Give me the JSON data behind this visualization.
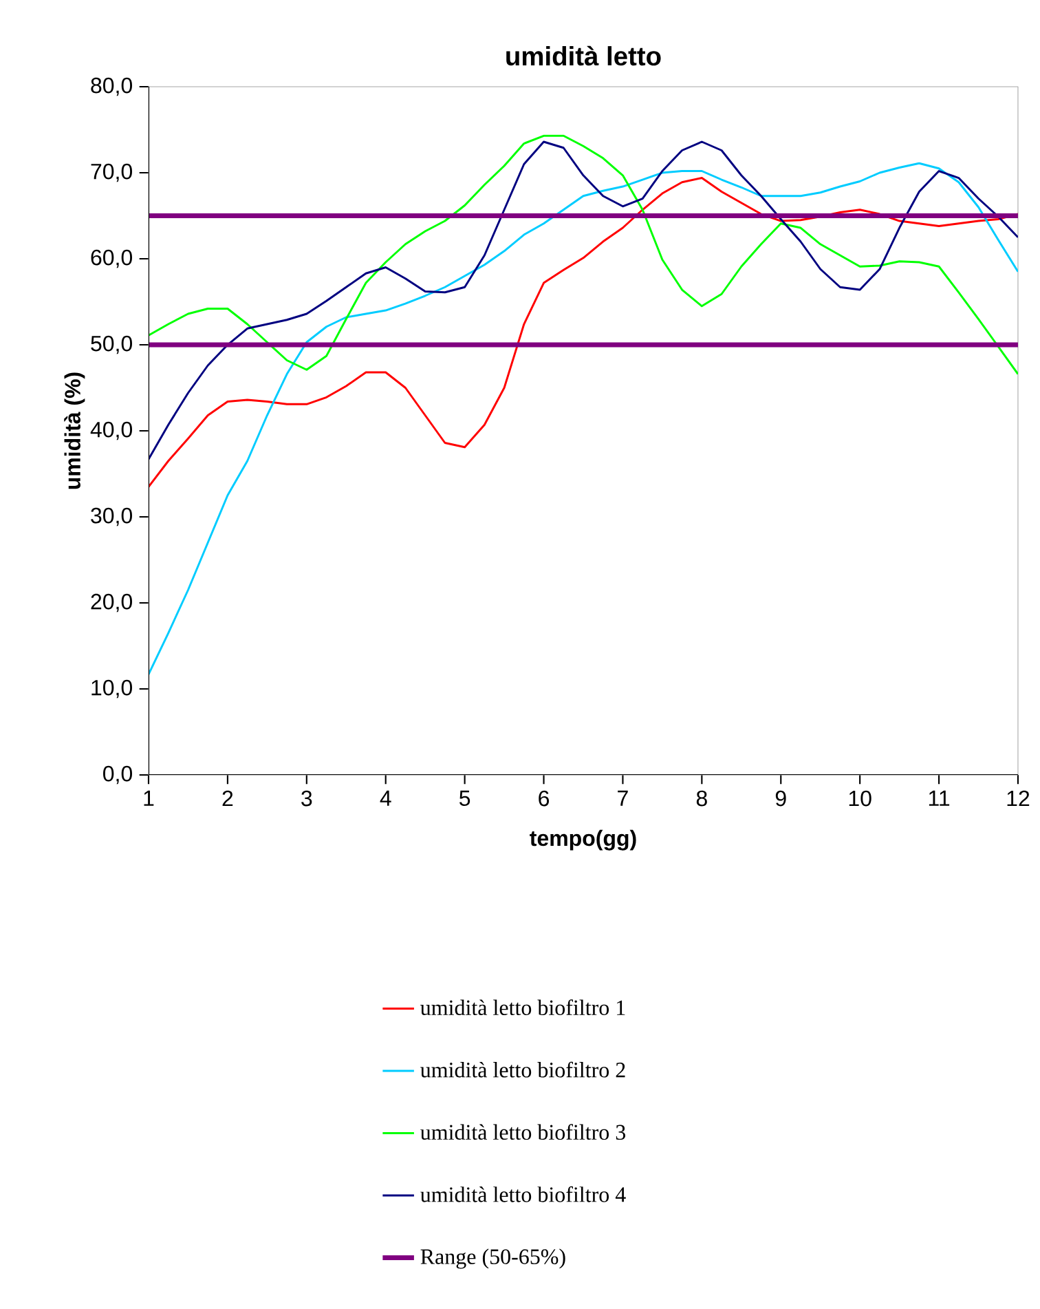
{
  "chart_data": {
    "type": "line",
    "title": "umidità letto",
    "xlabel": "tempo(gg)",
    "ylabel": "umidità (%)",
    "x": [
      1,
      1.25,
      1.5,
      1.75,
      2,
      2.25,
      2.5,
      2.75,
      3,
      3.25,
      3.5,
      3.75,
      4,
      4.25,
      4.5,
      4.75,
      5,
      5.25,
      5.5,
      5.75,
      6,
      6.25,
      6.5,
      6.75,
      7,
      7.25,
      7.5,
      7.75,
      8,
      8.25,
      8.5,
      8.75,
      9,
      9.25,
      9.5,
      9.75,
      10,
      10.25,
      10.5,
      10.75,
      11,
      11.25,
      11.5,
      11.75,
      12
    ],
    "series": [
      {
        "name": "umidità letto biofiltro 1",
        "color": "#ff0000",
        "values": [
          33.5,
          36.5,
          39.1,
          41.8,
          43.4,
          43.6,
          43.4,
          43.1,
          43.1,
          43.9,
          45.2,
          46.8,
          46.8,
          45.0,
          41.8,
          38.6,
          38.1,
          40.7,
          45.0,
          52.4,
          57.2,
          58.7,
          60.1,
          62.0,
          63.6,
          65.7,
          67.6,
          68.9,
          69.4,
          67.8,
          66.5,
          65.2,
          64.4,
          64.5,
          64.9,
          65.4,
          65.7,
          65.2,
          64.4,
          64.1,
          63.8,
          64.1,
          64.4,
          64.6,
          65.2
        ]
      },
      {
        "name": "umidità letto biofiltro 2",
        "color": "#00ccff",
        "values": [
          11.7,
          16.5,
          21.5,
          27.0,
          32.5,
          36.5,
          41.8,
          46.6,
          50.3,
          52.1,
          53.2,
          53.6,
          54.0,
          54.8,
          55.7,
          56.7,
          58.0,
          59.3,
          60.9,
          62.8,
          64.1,
          65.7,
          67.3,
          67.9,
          68.4,
          69.2,
          70.0,
          70.2,
          70.2,
          69.2,
          68.3,
          67.3,
          67.3,
          67.3,
          67.7,
          68.4,
          69.0,
          70.0,
          70.6,
          71.1,
          70.5,
          68.9,
          66.0,
          62.2,
          58.5
        ]
      },
      {
        "name": "umidità letto biofiltro 3",
        "color": "#00ff00",
        "values": [
          51.1,
          52.4,
          53.6,
          54.2,
          54.2,
          52.4,
          50.3,
          48.2,
          47.1,
          48.7,
          53.0,
          57.2,
          59.6,
          61.7,
          63.2,
          64.4,
          66.2,
          68.6,
          70.8,
          73.4,
          74.3,
          74.3,
          73.1,
          71.7,
          69.7,
          65.7,
          59.9,
          56.4,
          54.5,
          55.9,
          59.1,
          61.7,
          64.1,
          63.6,
          61.7,
          60.4,
          59.1,
          59.2,
          59.7,
          59.6,
          59.1,
          56.1,
          53.0,
          49.8,
          46.6
        ]
      },
      {
        "name": "umidità letto biofiltro 4",
        "color": "#000080",
        "values": [
          36.7,
          40.7,
          44.4,
          47.6,
          50.0,
          51.9,
          52.4,
          52.9,
          53.6,
          55.1,
          56.7,
          58.3,
          59.0,
          57.7,
          56.2,
          56.1,
          56.7,
          60.4,
          65.7,
          71.0,
          73.6,
          72.9,
          69.7,
          67.3,
          66.1,
          67.0,
          70.2,
          72.6,
          73.6,
          72.6,
          69.7,
          67.3,
          64.6,
          62.0,
          58.8,
          56.7,
          56.4,
          58.8,
          63.6,
          67.8,
          70.2,
          69.4,
          67.0,
          64.9,
          62.5
        ]
      }
    ],
    "ref_lines": [
      {
        "axis": "y",
        "value": 50,
        "color": "#800080",
        "label": "Range  (50-65%)"
      },
      {
        "axis": "y",
        "value": 65,
        "color": "#800080"
      }
    ],
    "xlim": [
      1,
      12
    ],
    "xticks": [
      1,
      2,
      3,
      4,
      5,
      6,
      7,
      8,
      9,
      10,
      11,
      12
    ],
    "ylim": [
      0,
      80
    ],
    "yticks": [
      {
        "value": 0,
        "label": "0,0"
      },
      {
        "value": 10,
        "label": "10,0"
      },
      {
        "value": 20,
        "label": "20,0"
      },
      {
        "value": 30,
        "label": "30,0"
      },
      {
        "value": 40,
        "label": "40,0"
      },
      {
        "value": 50,
        "label": "50,0"
      },
      {
        "value": 60,
        "label": "60,0"
      },
      {
        "value": 70,
        "label": "70,0"
      },
      {
        "value": 80,
        "label": "80,0"
      }
    ],
    "grid": false,
    "legend": "bottom",
    "marker": "none",
    "line_style": "solid"
  }
}
